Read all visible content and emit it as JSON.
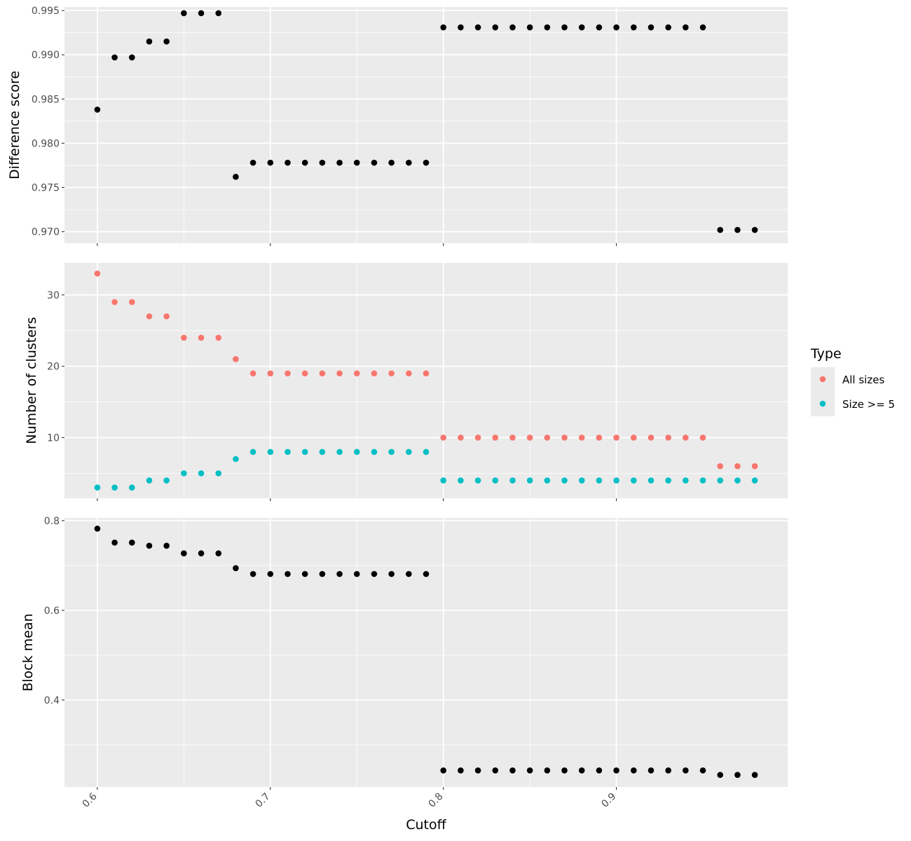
{
  "chart_data": {
    "type": "scatter",
    "xlabel": "Cutoff",
    "x_ticks": [
      "0.6",
      "0.7",
      "0.8",
      "0.9"
    ],
    "x_tick_values": [
      0.6,
      0.7,
      0.8,
      0.9
    ],
    "xlim": [
      0.581,
      0.999
    ],
    "x": [
      0.6,
      0.61,
      0.62,
      0.63,
      0.64,
      0.65,
      0.66,
      0.67,
      0.68,
      0.69,
      0.7,
      0.71,
      0.72,
      0.73,
      0.74,
      0.75,
      0.76,
      0.77,
      0.78,
      0.79,
      0.8,
      0.81,
      0.82,
      0.83,
      0.84,
      0.85,
      0.86,
      0.87,
      0.88,
      0.89,
      0.9,
      0.91,
      0.92,
      0.93,
      0.94,
      0.95,
      0.96,
      0.97,
      0.98
    ],
    "grid": true,
    "legend": {
      "title": "Type",
      "placement": "right",
      "entries": [
        {
          "label": "All sizes",
          "color": "#F8766D"
        },
        {
          "label": "Size >= 5",
          "color": "#00BFC4"
        }
      ]
    },
    "panels": [
      {
        "ylabel": "Difference score",
        "ylim": [
          0.9687,
          0.9954
        ],
        "y_ticks": [
          "0.970",
          "0.975",
          "0.980",
          "0.985",
          "0.990",
          "0.995"
        ],
        "y_tick_values": [
          0.97,
          0.975,
          0.98,
          0.985,
          0.99,
          0.995
        ],
        "series": [
          {
            "color": "#000000",
            "values": [
              0.9838,
              0.9897,
              0.9897,
              0.9915,
              0.9915,
              0.9947,
              0.9947,
              0.9947,
              0.9762,
              0.9778,
              0.9778,
              0.9778,
              0.9778,
              0.9778,
              0.9778,
              0.9778,
              0.9778,
              0.9778,
              0.9778,
              0.9778,
              0.9931,
              0.9931,
              0.9931,
              0.9931,
              0.9931,
              0.9931,
              0.9931,
              0.9931,
              0.9931,
              0.9931,
              0.9931,
              0.9931,
              0.9931,
              0.9931,
              0.9931,
              0.9931,
              0.9702,
              0.9702,
              0.9702
            ]
          }
        ]
      },
      {
        "ylabel": "Number of clusters",
        "ylim": [
          1.5,
          34.5
        ],
        "y_ticks": [
          "10",
          "20",
          "30"
        ],
        "y_tick_values": [
          10,
          20,
          30
        ],
        "series": [
          {
            "name": "All sizes",
            "color": "#F8766D",
            "values": [
              33,
              29,
              29,
              27,
              27,
              24,
              24,
              24,
              21,
              19,
              19,
              19,
              19,
              19,
              19,
              19,
              19,
              19,
              19,
              19,
              10,
              10,
              10,
              10,
              10,
              10,
              10,
              10,
              10,
              10,
              10,
              10,
              10,
              10,
              10,
              10,
              6,
              6,
              6
            ]
          },
          {
            "name": "Size >= 5",
            "color": "#00BFC4",
            "values": [
              3,
              3,
              3,
              4,
              4,
              5,
              5,
              5,
              7,
              8,
              8,
              8,
              8,
              8,
              8,
              8,
              8,
              8,
              8,
              8,
              4,
              4,
              4,
              4,
              4,
              4,
              4,
              4,
              4,
              4,
              4,
              4,
              4,
              4,
              4,
              4,
              4,
              4,
              4
            ]
          }
        ]
      },
      {
        "ylabel": "Block mean",
        "ylim": [
          0.206,
          0.806
        ],
        "y_ticks": [
          "0.4",
          "0.6",
          "0.8"
        ],
        "y_tick_values": [
          0.4,
          0.6,
          0.8
        ],
        "series": [
          {
            "color": "#000000",
            "values": [
              0.782,
              0.751,
              0.751,
              0.744,
              0.744,
              0.727,
              0.727,
              0.727,
              0.694,
              0.681,
              0.681,
              0.681,
              0.681,
              0.681,
              0.681,
              0.681,
              0.681,
              0.681,
              0.681,
              0.681,
              0.243,
              0.243,
              0.243,
              0.243,
              0.243,
              0.243,
              0.243,
              0.243,
              0.243,
              0.243,
              0.243,
              0.243,
              0.243,
              0.243,
              0.243,
              0.243,
              0.233,
              0.233,
              0.233
            ]
          }
        ]
      }
    ]
  }
}
